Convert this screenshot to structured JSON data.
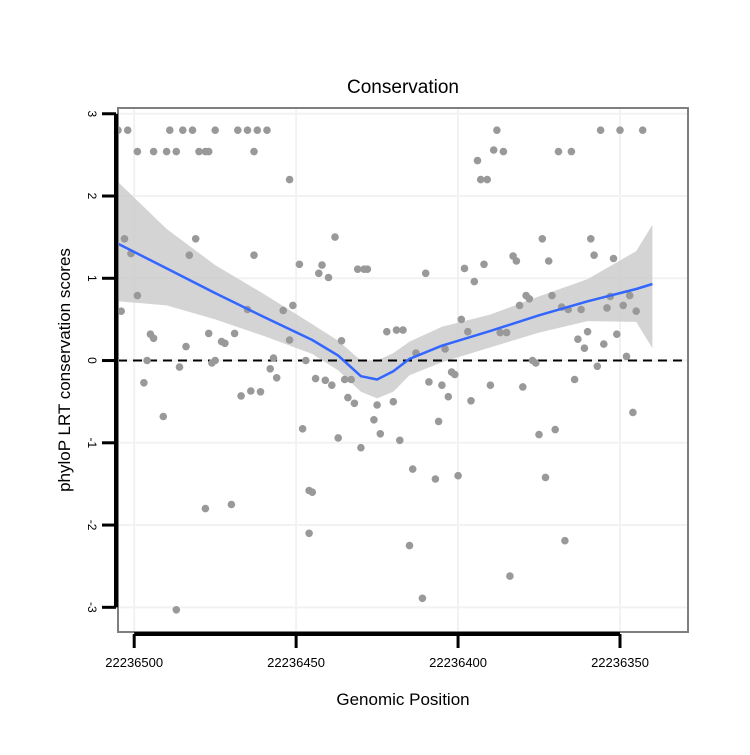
{
  "chart_data": {
    "type": "scatter",
    "title": "Conservation",
    "xlabel": "Genomic Position",
    "ylabel": "phyloP LRT conservation scores",
    "x_reversed": true,
    "xlim": [
      22236505,
      22236329
    ],
    "ylim": [
      -3.3,
      3.07
    ],
    "x_ticks": [
      22236500,
      22236450,
      22236400,
      22236350
    ],
    "x_tick_labels": [
      "22236500",
      "22236450",
      "22236400",
      "22236350"
    ],
    "y_ticks": [
      -3,
      -2,
      -1,
      0,
      1,
      2,
      3
    ],
    "y_tick_labels": [
      "-3",
      "-2",
      "-1",
      "0",
      "1",
      "2",
      "3"
    ],
    "grid": true,
    "reference_line": {
      "y": 0,
      "style": "dashed",
      "color": "#000000"
    },
    "colors": {
      "points": "#999999",
      "smooth_line": "#3366ff",
      "confidence_band": "#cccccc",
      "panel_border": "#7f7f7f",
      "grid": "#f2f2f2"
    },
    "points": [
      [
        22236505,
        2.8
      ],
      [
        22236502,
        2.8
      ],
      [
        22236499,
        2.54
      ],
      [
        22236494,
        2.54
      ],
      [
        22236490,
        2.54
      ],
      [
        22236489,
        2.8
      ],
      [
        22236487,
        2.54
      ],
      [
        22236485,
        2.8
      ],
      [
        22236482,
        2.8
      ],
      [
        22236480,
        2.54
      ],
      [
        22236478,
        2.54
      ],
      [
        22236477,
        2.54
      ],
      [
        22236475,
        2.8
      ],
      [
        22236468,
        2.8
      ],
      [
        22236465,
        2.8
      ],
      [
        22236463,
        2.54
      ],
      [
        22236462,
        2.8
      ],
      [
        22236459,
        2.8
      ],
      [
        22236452,
        2.2
      ],
      [
        22236504,
        0.6
      ],
      [
        22236503,
        1.48
      ],
      [
        22236501,
        1.3
      ],
      [
        22236499,
        0.79
      ],
      [
        22236497,
        -0.27
      ],
      [
        22236496,
        0.0
      ],
      [
        22236495,
        0.32
      ],
      [
        22236494,
        0.27
      ],
      [
        22236491,
        -0.68
      ],
      [
        22236487,
        -3.03
      ],
      [
        22236486,
        -0.08
      ],
      [
        22236484,
        0.17
      ],
      [
        22236483,
        1.28
      ],
      [
        22236481,
        1.48
      ],
      [
        22236478,
        -1.8
      ],
      [
        22236477,
        0.33
      ],
      [
        22236476,
        -0.03
      ],
      [
        22236475,
        0.0
      ],
      [
        22236473,
        0.23
      ],
      [
        22236472,
        0.21
      ],
      [
        22236470,
        -1.75
      ],
      [
        22236469,
        0.33
      ],
      [
        22236467,
        -0.43
      ],
      [
        22236465,
        0.62
      ],
      [
        22236464,
        -0.37
      ],
      [
        22236463,
        1.28
      ],
      [
        22236461,
        -0.38
      ],
      [
        22236458,
        -0.1
      ],
      [
        22236457,
        0.03
      ],
      [
        22236456,
        -0.21
      ],
      [
        22236454,
        0.61
      ],
      [
        22236452,
        0.25
      ],
      [
        22236451,
        0.67
      ],
      [
        22236449,
        1.17
      ],
      [
        22236448,
        -0.83
      ],
      [
        22236447,
        0.0
      ],
      [
        22236446,
        -1.58
      ],
      [
        22236445,
        -1.6
      ],
      [
        22236446,
        -2.1
      ],
      [
        22236444,
        -0.22
      ],
      [
        22236443,
        1.06
      ],
      [
        22236442,
        1.16
      ],
      [
        22236441,
        -0.24
      ],
      [
        22236440,
        1.01
      ],
      [
        22236439,
        -0.3
      ],
      [
        22236438,
        1.5
      ],
      [
        22236437,
        -0.94
      ],
      [
        22236436,
        0.24
      ],
      [
        22236435,
        -0.23
      ],
      [
        22236434,
        -0.45
      ],
      [
        22236433,
        -0.23
      ],
      [
        22236432,
        -0.52
      ],
      [
        22236431,
        1.11
      ],
      [
        22236430,
        -1.06
      ],
      [
        22236429,
        1.11
      ],
      [
        22236428,
        1.11
      ],
      [
        22236426,
        -0.72
      ],
      [
        22236425,
        -0.54
      ],
      [
        22236424,
        -0.89
      ],
      [
        22236422,
        0.35
      ],
      [
        22236420,
        -0.5
      ],
      [
        22236419,
        0.37
      ],
      [
        22236418,
        -0.97
      ],
      [
        22236417,
        0.37
      ],
      [
        22236415,
        -2.25
      ],
      [
        22236414,
        -1.32
      ],
      [
        22236413,
        0.09
      ],
      [
        22236411,
        -2.89
      ],
      [
        22236410,
        1.06
      ],
      [
        22236409,
        -0.26
      ],
      [
        22236407,
        -1.44
      ],
      [
        22236406,
        -0.74
      ],
      [
        22236405,
        -0.3
      ],
      [
        22236404,
        0.14
      ],
      [
        22236403,
        -0.44
      ],
      [
        22236402,
        -0.14
      ],
      [
        22236401,
        -0.17
      ],
      [
        22236400,
        -1.4
      ],
      [
        22236399,
        0.5
      ],
      [
        22236398,
        1.12
      ],
      [
        22236397,
        0.35
      ],
      [
        22236396,
        -0.49
      ],
      [
        22236395,
        0.96
      ],
      [
        22236394,
        2.43
      ],
      [
        22236393,
        2.2
      ],
      [
        22236392,
        1.17
      ],
      [
        22236391,
        2.2
      ],
      [
        22236390,
        -0.3
      ],
      [
        22236389,
        2.56
      ],
      [
        22236388,
        2.8
      ],
      [
        22236387,
        0.34
      ],
      [
        22236386,
        2.54
      ],
      [
        22236385,
        0.34
      ],
      [
        22236384,
        -2.62
      ],
      [
        22236383,
        1.27
      ],
      [
        22236382,
        1.21
      ],
      [
        22236381,
        0.67
      ],
      [
        22236380,
        -0.32
      ],
      [
        22236379,
        0.79
      ],
      [
        22236378,
        0.75
      ],
      [
        22236377,
        0.0
      ],
      [
        22236376,
        -0.03
      ],
      [
        22236375,
        -0.9
      ],
      [
        22236374,
        1.48
      ],
      [
        22236373,
        -1.42
      ],
      [
        22236372,
        1.21
      ],
      [
        22236371,
        0.79
      ],
      [
        22236370,
        -0.84
      ],
      [
        22236369,
        2.54
      ],
      [
        22236368,
        0.65
      ],
      [
        22236367,
        -2.19
      ],
      [
        22236366,
        0.62
      ],
      [
        22236365,
        2.54
      ],
      [
        22236364,
        -0.23
      ],
      [
        22236363,
        0.26
      ],
      [
        22236362,
        0.62
      ],
      [
        22236361,
        0.15
      ],
      [
        22236360,
        0.35
      ],
      [
        22236359,
        1.48
      ],
      [
        22236358,
        1.28
      ],
      [
        22236357,
        -0.07
      ],
      [
        22236356,
        2.8
      ],
      [
        22236355,
        0.2
      ],
      [
        22236354,
        0.64
      ],
      [
        22236353,
        0.78
      ],
      [
        22236352,
        1.24
      ],
      [
        22236351,
        0.32
      ],
      [
        22236350,
        2.8
      ],
      [
        22236349,
        0.67
      ],
      [
        22236348,
        0.05
      ],
      [
        22236347,
        0.79
      ],
      [
        22236346,
        -0.63
      ],
      [
        22236345,
        0.6
      ],
      [
        22236343,
        2.8
      ]
    ],
    "smooth_fit": {
      "x": [
        22236505,
        22236490,
        22236475,
        22236460,
        22236445,
        22236437,
        22236430,
        22236425,
        22236420,
        22236415,
        22236405,
        22236390,
        22236375,
        22236360,
        22236345,
        22236340
      ],
      "y": [
        1.42,
        1.12,
        0.82,
        0.53,
        0.25,
        0.06,
        -0.19,
        -0.23,
        -0.13,
        0.02,
        0.18,
        0.36,
        0.55,
        0.72,
        0.87,
        0.93
      ],
      "lower": [
        0.72,
        0.67,
        0.5,
        0.3,
        0.08,
        -0.12,
        -0.38,
        -0.46,
        -0.38,
        -0.18,
        -0.02,
        0.16,
        0.34,
        0.48,
        0.47,
        0.15
      ],
      "upper": [
        2.17,
        1.6,
        1.16,
        0.81,
        0.44,
        0.24,
        0.0,
        0.0,
        0.09,
        0.23,
        0.41,
        0.56,
        0.78,
        0.99,
        1.33,
        1.65
      ]
    }
  }
}
